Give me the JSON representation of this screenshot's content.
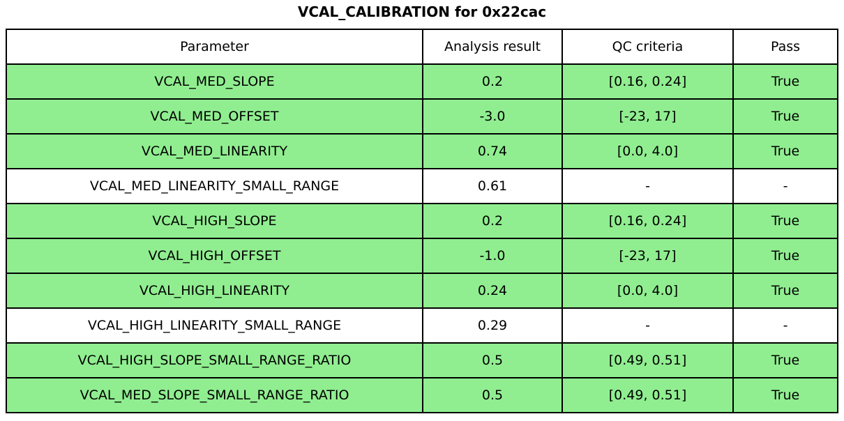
{
  "title": "VCAL_CALIBRATION for 0x22cac",
  "colors": {
    "pass_row_bg": "#90ee90",
    "default_row_bg": "#ffffff",
    "border": "#000000",
    "text": "#000000"
  },
  "chart_data": {
    "type": "table",
    "title": "VCAL_CALIBRATION for 0x22cac",
    "columns": [
      "Parameter",
      "Analysis result",
      "QC criteria",
      "Pass"
    ],
    "rows": [
      {
        "parameter": "VCAL_MED_SLOPE",
        "analysis_result": "0.2",
        "qc_criteria": "[0.16, 0.24]",
        "pass": "True",
        "highlighted": true
      },
      {
        "parameter": "VCAL_MED_OFFSET",
        "analysis_result": "-3.0",
        "qc_criteria": "[-23, 17]",
        "pass": "True",
        "highlighted": true
      },
      {
        "parameter": "VCAL_MED_LINEARITY",
        "analysis_result": "0.74",
        "qc_criteria": "[0.0, 4.0]",
        "pass": "True",
        "highlighted": true
      },
      {
        "parameter": "VCAL_MED_LINEARITY_SMALL_RANGE",
        "analysis_result": "0.61",
        "qc_criteria": "-",
        "pass": "-",
        "highlighted": false
      },
      {
        "parameter": "VCAL_HIGH_SLOPE",
        "analysis_result": "0.2",
        "qc_criteria": "[0.16, 0.24]",
        "pass": "True",
        "highlighted": true
      },
      {
        "parameter": "VCAL_HIGH_OFFSET",
        "analysis_result": "-1.0",
        "qc_criteria": "[-23, 17]",
        "pass": "True",
        "highlighted": true
      },
      {
        "parameter": "VCAL_HIGH_LINEARITY",
        "analysis_result": "0.24",
        "qc_criteria": "[0.0, 4.0]",
        "pass": "True",
        "highlighted": true
      },
      {
        "parameter": "VCAL_HIGH_LINEARITY_SMALL_RANGE",
        "analysis_result": "0.29",
        "qc_criteria": "-",
        "pass": "-",
        "highlighted": false
      },
      {
        "parameter": "VCAL_HIGH_SLOPE_SMALL_RANGE_RATIO",
        "analysis_result": "0.5",
        "qc_criteria": "[0.49, 0.51]",
        "pass": "True",
        "highlighted": true
      },
      {
        "parameter": "VCAL_MED_SLOPE_SMALL_RANGE_RATIO",
        "analysis_result": "0.5",
        "qc_criteria": "[0.49, 0.51]",
        "pass": "True",
        "highlighted": true
      }
    ]
  }
}
